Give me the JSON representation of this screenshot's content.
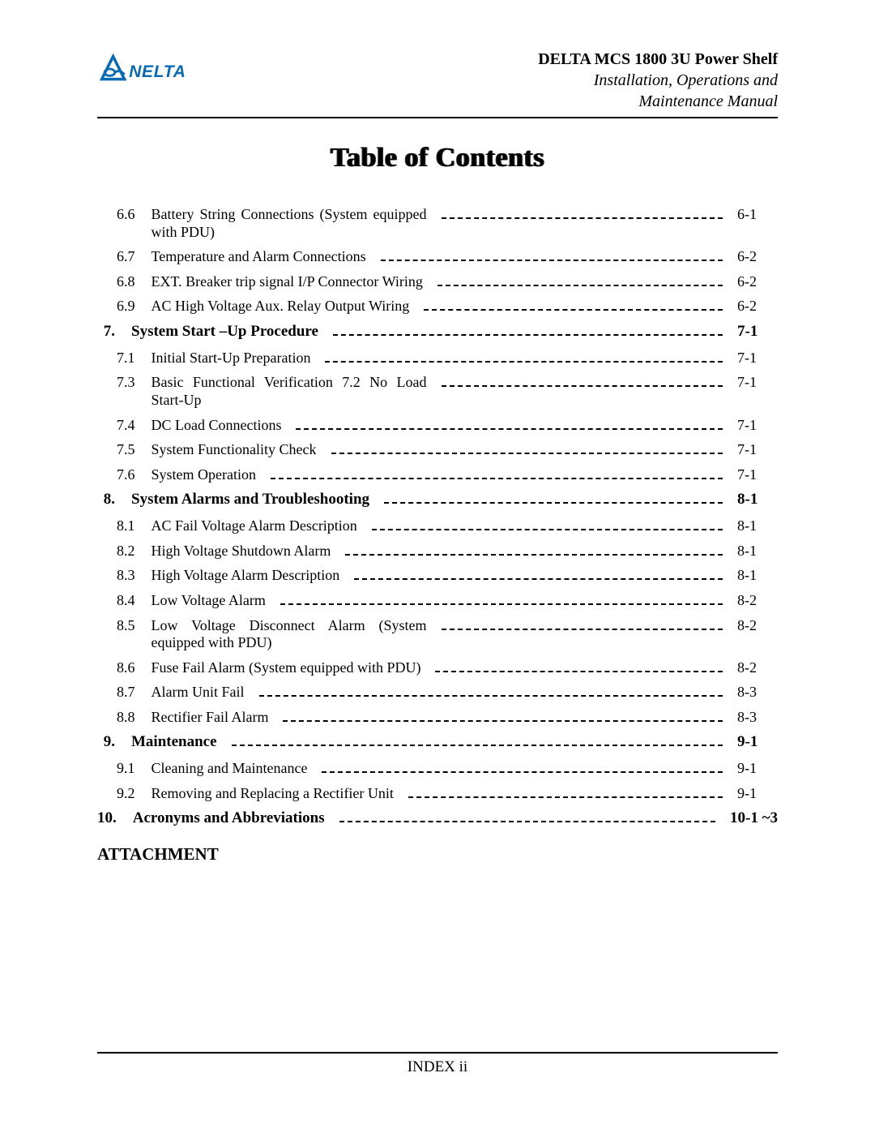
{
  "header": {
    "product": "DELTA MCS 1800 3U Power Shelf",
    "subtitle1": "Installation, Operations and",
    "subtitle2": "Maintenance Manual",
    "logo_text": "DELTA",
    "logo_color": "#0a6bb5"
  },
  "page_title": "Table of Contents",
  "toc": [
    {
      "type": "sub",
      "num": "6.6",
      "title": "Battery String Connections (System equipped with PDU)",
      "page": "6-1"
    },
    {
      "type": "sub",
      "num": "6.7",
      "title": "Temperature and Alarm Connections",
      "page": "6-2"
    },
    {
      "type": "sub",
      "num": "6.8",
      "title": "EXT. Breaker trip signal I/P Connector Wiring",
      "page": "6-2"
    },
    {
      "type": "sub",
      "num": "6.9",
      "title": "AC High Voltage Aux. Relay Output Wiring",
      "page": "6-2"
    },
    {
      "type": "section",
      "num": "7.",
      "title": "System Start –Up Procedure",
      "page": "7-1"
    },
    {
      "type": "sub",
      "num": "7.1",
      "title": "Initial Start-Up Preparation",
      "page": "7-1"
    },
    {
      "type": "sub",
      "num": "7.3",
      "title": "Basic Functional Verification 7.2  No Load Start-Up",
      "page": "7-1"
    },
    {
      "type": "sub",
      "num": "7.4",
      "title": "DC Load Connections",
      "page": "7-1"
    },
    {
      "type": "sub",
      "num": "7.5",
      "title": "System Functionality Check",
      "page": "7-1"
    },
    {
      "type": "sub",
      "num": "7.6",
      "title": "System Operation",
      "page": "7-1"
    },
    {
      "type": "section",
      "num": "8.",
      "title": "System Alarms and Troubleshooting",
      "page": "8-1"
    },
    {
      "type": "sub",
      "num": "8.1",
      "title": "AC Fail Voltage Alarm Description",
      "page": "8-1"
    },
    {
      "type": "sub",
      "num": "8.2",
      "title": "High Voltage Shutdown Alarm",
      "page": "8-1"
    },
    {
      "type": "sub",
      "num": "8.3",
      "title": "High Voltage Alarm Description",
      "page": "8-1"
    },
    {
      "type": "sub",
      "num": "8.4",
      "title": "Low Voltage Alarm",
      "page": "8-2"
    },
    {
      "type": "sub",
      "num": "8.5",
      "title": "Low Voltage Disconnect Alarm (System equipped with PDU)",
      "page": "8-2"
    },
    {
      "type": "sub",
      "num": "8.6",
      "title": "Fuse Fail Alarm (System equipped with PDU)",
      "page": "8-2"
    },
    {
      "type": "sub",
      "num": "8.7",
      "title": "Alarm Unit Fail",
      "page": "8-3"
    },
    {
      "type": "sub",
      "num": "8.8",
      "title": "Rectifier Fail Alarm",
      "page": "8-3"
    },
    {
      "type": "section",
      "num": "9.",
      "title": "Maintenance",
      "page": "9-1"
    },
    {
      "type": "sub",
      "num": "9.1",
      "title": "Cleaning and Maintenance",
      "page": "9-1"
    },
    {
      "type": "sub",
      "num": "9.2",
      "title": "Removing and Replacing a Rectifier Unit",
      "page": "9-1"
    },
    {
      "type": "section",
      "num": "10.",
      "title": "Acronyms and Abbreviations",
      "page": "10-1 ~3"
    }
  ],
  "attachment_label": "ATTACHMENT",
  "footer": "INDEX ii"
}
